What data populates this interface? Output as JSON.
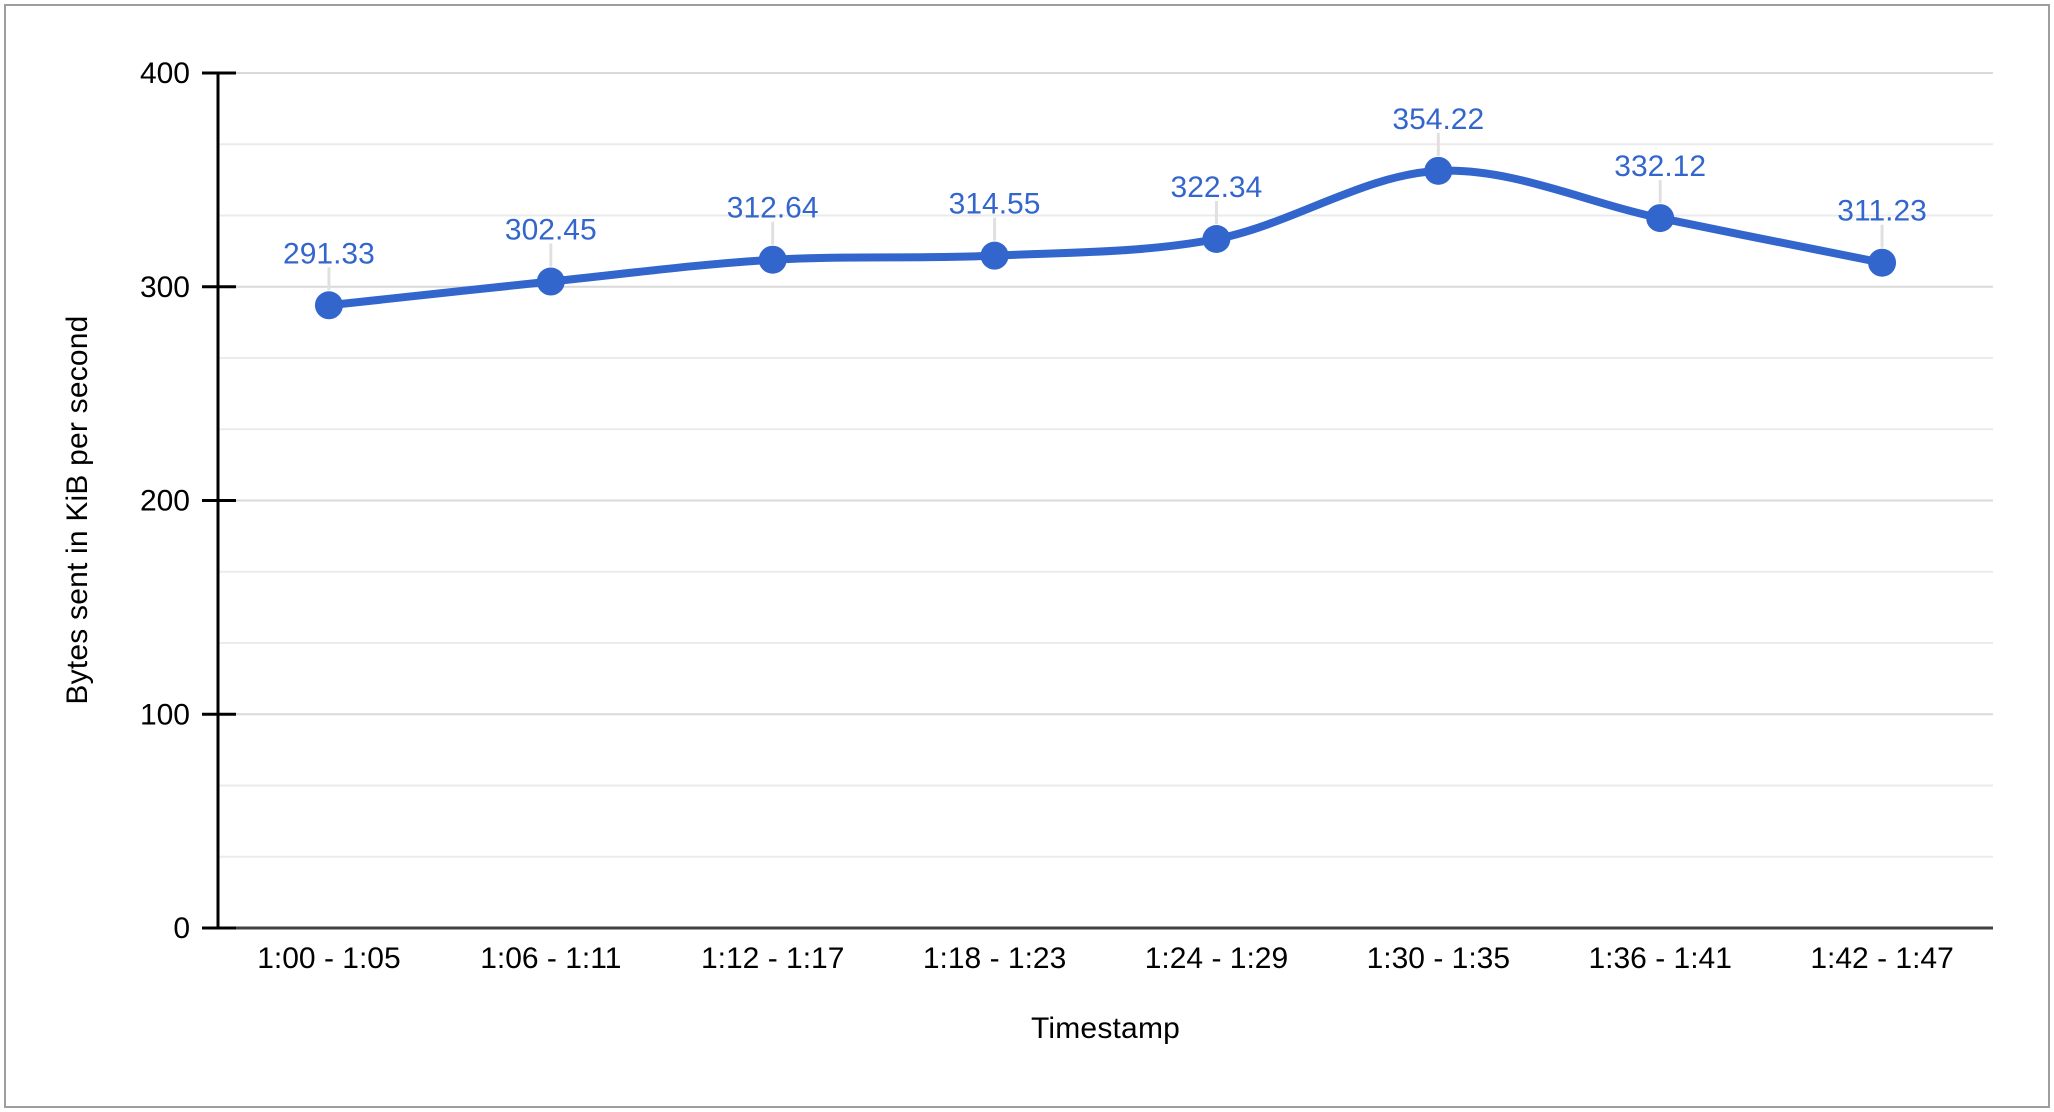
{
  "window": {
    "background": "#ffffff",
    "frame_border_color": "#9e9e9e"
  },
  "chart_data": {
    "type": "line",
    "title": "",
    "xlabel": "Timestamp",
    "ylabel": "Bytes sent in KiB per second",
    "categories": [
      "1:00 - 1:05",
      "1:06 - 1:11",
      "1:12 - 1:17",
      "1:18 - 1:23",
      "1:24 - 1:29",
      "1:30 - 1:35",
      "1:36 - 1:41",
      "1:42 - 1:47"
    ],
    "series": [
      {
        "values": [
          291.33,
          302.45,
          312.64,
          314.55,
          322.34,
          354.22,
          332.12,
          311.23
        ],
        "value_labels": [
          "291.33",
          "302.45",
          "312.64",
          "314.55",
          "322.34",
          "354.22",
          "332.12",
          "311.23"
        ]
      }
    ],
    "smooth": true,
    "show_data_labels": true,
    "legend_position": "none",
    "ylim": [
      0,
      400
    ],
    "y_major_ticks": [
      0,
      100,
      200,
      300,
      400
    ],
    "y_minor_gridlines_between_majors": 2,
    "grid_on": true,
    "colors": {
      "series": "#3366cc",
      "data_label": "#3366cc",
      "grid_major": "#d9d9d9",
      "grid_minor": "#ebebeb",
      "axis_line": "#000000",
      "baseline": "#424242",
      "leader_line": "#e0e0e0",
      "text": "#000000"
    }
  }
}
